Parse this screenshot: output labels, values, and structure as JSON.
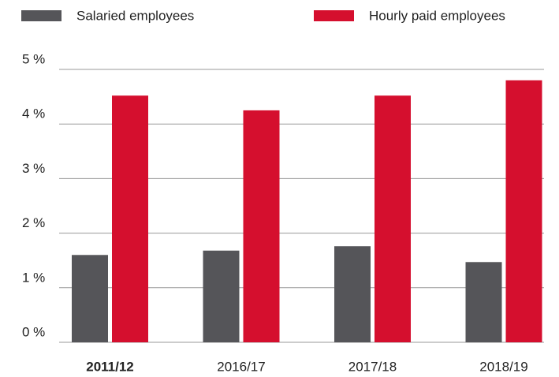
{
  "chart_data": {
    "type": "bar",
    "categories": [
      "2011/12",
      "2016/17",
      "2017/18",
      "2018/19"
    ],
    "series": [
      {
        "name": "Salaried employees",
        "color": "#555559",
        "values": [
          1.6,
          1.68,
          1.76,
          1.47
        ]
      },
      {
        "name": "Hourly paid employees",
        "color": "#d50f2e",
        "values": [
          4.52,
          4.25,
          4.52,
          4.8
        ]
      }
    ],
    "ylim": [
      0,
      5
    ],
    "yticks": [
      {
        "value": 0,
        "label": "0 %"
      },
      {
        "value": 1,
        "label": "1 %"
      },
      {
        "value": 2,
        "label": "2 %"
      },
      {
        "value": 3,
        "label": "3 %"
      },
      {
        "value": 4,
        "label": "4 %"
      },
      {
        "value": 5,
        "label": "5 %"
      }
    ],
    "grid": true
  }
}
